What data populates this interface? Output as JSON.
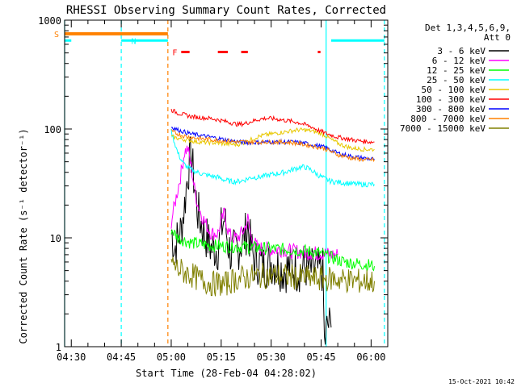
{
  "chart_data": {
    "type": "line",
    "title": "RHESSI Observing Summary Count Rates, Corrected",
    "xlabel": "Start Time (28-Feb-04 04:28:02)",
    "ylabel": "Corrected Count Rate (s⁻¹ detector⁻¹)",
    "ylog": true,
    "ylim": [
      1,
      1000
    ],
    "xlim_minutes": [
      0,
      97
    ],
    "x_ticks": [
      {
        "m": 2,
        "label": "04:30"
      },
      {
        "m": 17,
        "label": "04:45"
      },
      {
        "m": 32,
        "label": "05:00"
      },
      {
        "m": 47,
        "label": "05:15"
      },
      {
        "m": 62,
        "label": "05:30"
      },
      {
        "m": 77,
        "label": "05:45"
      },
      {
        "m": 92,
        "label": "06:00"
      }
    ],
    "y_ticks": [
      {
        "v": 1,
        "label": "1"
      },
      {
        "v": 10,
        "label": "10"
      },
      {
        "v": 100,
        "label": "100"
      },
      {
        "v": 1000,
        "label": "1000"
      }
    ],
    "legend_header": [
      "Det 1,3,4,5,6,9,",
      "Att 0"
    ],
    "series": [
      {
        "name": "3 - 6 keV",
        "color": "#000000",
        "x": [
          32,
          33,
          34,
          35,
          36,
          37,
          38,
          39,
          40,
          42,
          44,
          46,
          47,
          48,
          49,
          50,
          52,
          54,
          55,
          56,
          57,
          58,
          60,
          62,
          64,
          66,
          68,
          70,
          72,
          74,
          76,
          77.5,
          78,
          79,
          80
        ],
        "y": [
          12,
          8,
          10,
          12,
          20,
          40,
          58,
          30,
          17,
          11,
          8,
          8,
          12,
          15,
          9,
          7,
          8,
          10,
          13,
          8,
          6,
          6,
          5.5,
          6,
          5.5,
          5,
          5.5,
          5,
          5.5,
          5,
          5,
          5,
          1.05,
          1.6,
          1.5
        ]
      },
      {
        "name": "6 - 12 keV",
        "color": "#ff00ff",
        "x": [
          32,
          33,
          34,
          35,
          36,
          37,
          38,
          39,
          40,
          42,
          44,
          46,
          47,
          48,
          49,
          50,
          52,
          54,
          55,
          56,
          57,
          58,
          60,
          62,
          64,
          66,
          68,
          70,
          72,
          74,
          76,
          78,
          80,
          82
        ],
        "y": [
          14,
          20,
          28,
          40,
          62,
          66,
          45,
          28,
          20,
          14,
          11,
          11,
          14,
          17,
          12,
          10,
          10,
          12,
          15,
          10,
          9,
          8,
          8,
          7.8,
          7.8,
          7.8,
          7.5,
          7.5,
          7.3,
          7.3,
          7.2,
          7.2,
          7,
          7
        ]
      },
      {
        "name": "12 - 25 keV",
        "color": "#00ff00",
        "x": [
          32,
          34,
          36,
          38,
          40,
          44,
          48,
          52,
          56,
          60,
          64,
          68,
          72,
          76,
          80,
          84,
          88,
          92,
          93
        ],
        "y": [
          12,
          10,
          9.5,
          9,
          8.8,
          8.5,
          8.4,
          8.3,
          8.2,
          8,
          7.9,
          7.8,
          7.6,
          7.3,
          6.6,
          6,
          5.8,
          5.6,
          5.5
        ]
      },
      {
        "name": "25 - 50 keV",
        "color": "#00ffff",
        "x": [
          32,
          33,
          34,
          35,
          36,
          38,
          40,
          42,
          44,
          46,
          48,
          50,
          52,
          54,
          56,
          58,
          60,
          62,
          64,
          66,
          68,
          70,
          72,
          74,
          76,
          78,
          80,
          84,
          88,
          92,
          93
        ],
        "y": [
          95,
          75,
          60,
          52,
          47,
          42,
          40,
          38,
          37,
          36,
          34,
          33,
          33,
          34,
          36,
          36,
          37,
          38,
          39,
          40,
          42,
          44,
          45,
          42,
          38,
          35,
          33,
          32,
          31,
          31,
          31
        ]
      },
      {
        "name": "50 - 100 keV",
        "color": "#e8c800",
        "x": [
          32,
          34,
          36,
          38,
          40,
          44,
          48,
          52,
          54,
          56,
          58,
          60,
          62,
          64,
          66,
          68,
          70,
          72,
          74,
          76,
          78,
          80,
          82,
          84,
          86,
          88,
          90,
          92,
          93
        ],
        "y": [
          85,
          82,
          80,
          78,
          76,
          75,
          73,
          72,
          75,
          80,
          85,
          88,
          90,
          92,
          94,
          96,
          98,
          98,
          96,
          93,
          88,
          80,
          74,
          70,
          67,
          66,
          65,
          65,
          65
        ]
      },
      {
        "name": "100 - 300 keV",
        "color": "#ff0000",
        "x": [
          32,
          34,
          36,
          38,
          40,
          44,
          48,
          52,
          54,
          56,
          58,
          60,
          62,
          64,
          66,
          68,
          70,
          72,
          74,
          76,
          78,
          80,
          82,
          84,
          86,
          88,
          90,
          92,
          93
        ],
        "y": [
          150,
          140,
          135,
          130,
          128,
          125,
          118,
          110,
          112,
          117,
          122,
          125,
          125,
          123,
          120,
          118,
          115,
          110,
          105,
          98,
          92,
          88,
          84,
          82,
          80,
          78,
          77,
          76,
          76
        ]
      },
      {
        "name": "300 - 800 keV",
        "color": "#0000ff",
        "x": [
          32,
          34,
          36,
          38,
          40,
          44,
          48,
          52,
          56,
          60,
          64,
          68,
          72,
          76,
          78,
          80,
          82,
          84,
          86,
          88,
          90,
          92,
          93
        ],
        "y": [
          105,
          98,
          94,
          90,
          88,
          84,
          80,
          76,
          75,
          76,
          76,
          76,
          74,
          70,
          68,
          64,
          60,
          58,
          56,
          55,
          54,
          53,
          53
        ]
      },
      {
        "name": "800 - 7000 keV",
        "color": "#ff8000",
        "x": [
          32,
          34,
          36,
          38,
          40,
          44,
          48,
          52,
          56,
          60,
          64,
          68,
          72,
          76,
          78,
          80,
          82,
          84,
          86,
          88,
          90,
          92,
          93
        ],
        "y": [
          95,
          90,
          86,
          84,
          82,
          80,
          78,
          76,
          76,
          76,
          76,
          75,
          72,
          68,
          66,
          62,
          58,
          56,
          54,
          53,
          52,
          52,
          52
        ]
      },
      {
        "name": "7000 - 15000 keV",
        "color": "#808000",
        "x": [
          32,
          33,
          34,
          36,
          38,
          40,
          42,
          44,
          46,
          48,
          50,
          52,
          56,
          60,
          64,
          68,
          72,
          76,
          80,
          84,
          88,
          92,
          93
        ],
        "y": [
          6,
          5.5,
          5.2,
          4.8,
          4.6,
          4.2,
          4,
          3.8,
          3.8,
          3.7,
          4,
          4.2,
          4.4,
          4.5,
          4.5,
          4.4,
          4.3,
          4.2,
          4.2,
          4.1,
          4,
          4,
          4
        ]
      }
    ],
    "attenuator_state_S": {
      "label": "S",
      "color": "#ff8000",
      "x_start": 0,
      "x_end": 31,
      "y": 750
    },
    "night_N": {
      "label": "N",
      "color": "#00ffff",
      "segments": [
        [
          0,
          2
        ],
        [
          17,
          31
        ],
        [
          80,
          96
        ]
      ],
      "y": 650
    },
    "flare_F": {
      "label": "F",
      "color": "#ff0000",
      "segments": [
        [
          35,
          37.5
        ],
        [
          46,
          49
        ],
        [
          53,
          55
        ],
        [
          76,
          76.8
        ]
      ],
      "y": 510
    },
    "vertical_markers": [
      {
        "m": 0,
        "color": "#00ffff",
        "style": "solid"
      },
      {
        "m": 17,
        "color": "#00ffff",
        "style": "dashed"
      },
      {
        "m": 31,
        "color": "#ff8000",
        "style": "dashed"
      },
      {
        "m": 78.5,
        "color": "#00ffff",
        "style": "solid"
      },
      {
        "m": 96,
        "color": "#00ffff",
        "style": "dashed"
      }
    ],
    "timestamp": "15-Oct-2021 10:42"
  }
}
